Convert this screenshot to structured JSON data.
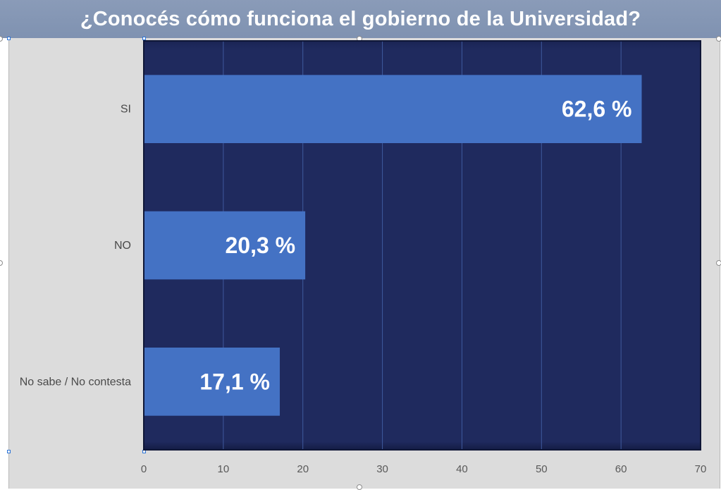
{
  "chart_data": {
    "type": "bar",
    "orientation": "horizontal",
    "title": "¿Conocés cómo funciona el gobierno de la Universidad?",
    "xlabel": "",
    "ylabel": "",
    "categories": [
      "SI",
      "NO",
      "No sabe / No contesta"
    ],
    "values": [
      62.6,
      20.3,
      17.1
    ],
    "data_labels": [
      "62,6 %",
      "20,3 %",
      "17,1 %"
    ],
    "xlim": [
      0,
      70
    ],
    "xticks": [
      0,
      10,
      20,
      30,
      40,
      50,
      60,
      70
    ],
    "grid": true,
    "legend": "none",
    "colors": {
      "bar": "#4472c4",
      "plot_background": "#1f2a5e",
      "gridline": "#3f5a9e",
      "title_background": "#8496b4",
      "chart_background": "#dcdcdc"
    }
  }
}
